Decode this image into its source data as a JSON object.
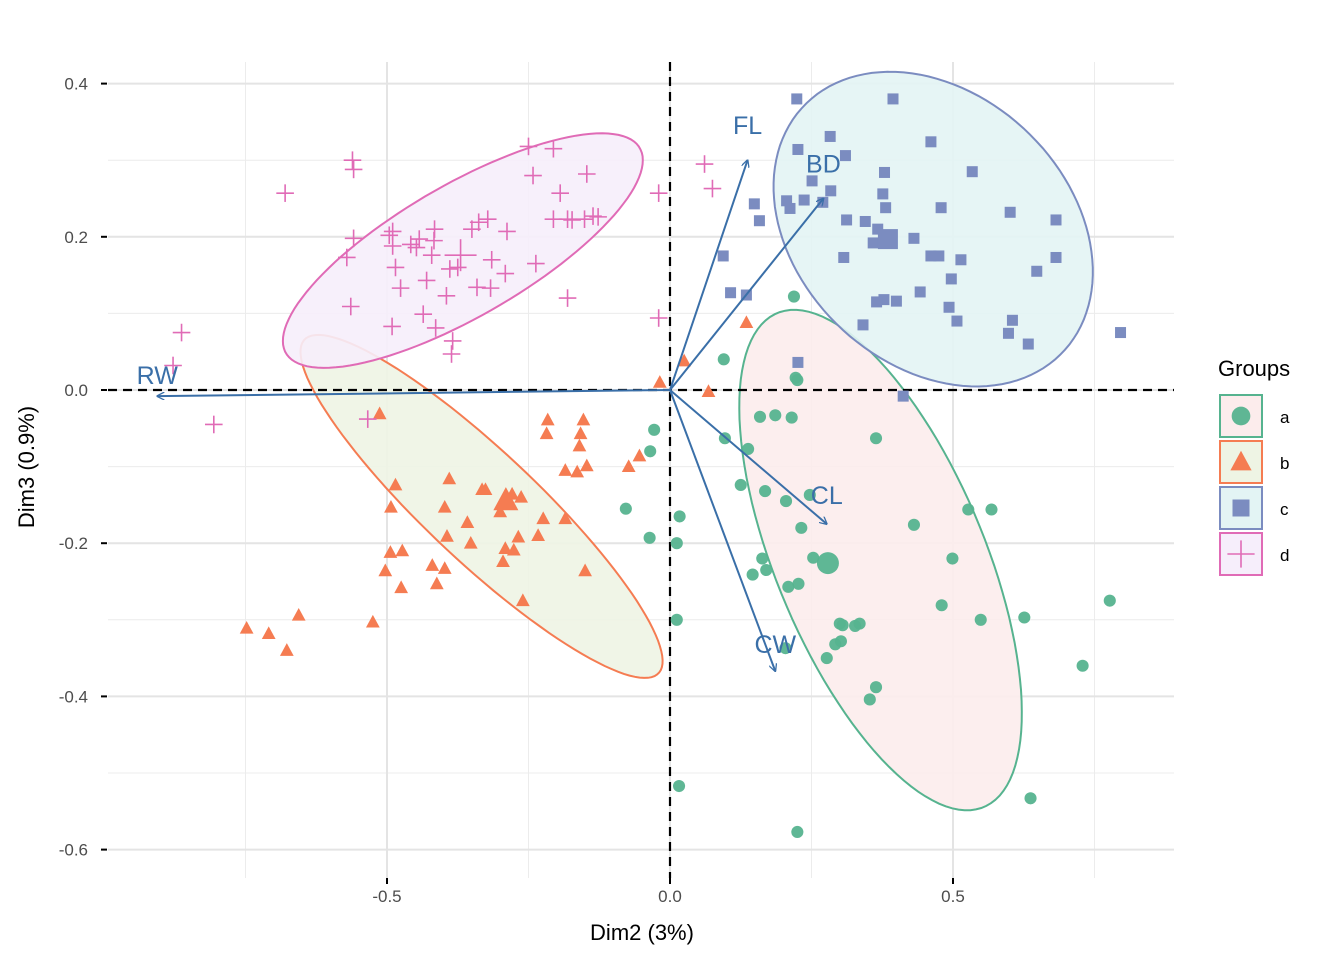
{
  "chart_data": {
    "type": "scatter",
    "title": "",
    "xlabel": "Dim2 (3%)",
    "ylabel": "Dim3 (0.9%)",
    "xlim": [
      -0.96,
      0.89
    ],
    "ylim": [
      -0.635,
      0.455
    ],
    "x_ticks": [
      -0.5,
      0.0,
      0.5
    ],
    "x_tick_labels": [
      "-0.5",
      "0.0",
      "0.5"
    ],
    "y_ticks": [
      0.4,
      0.2,
      0.0,
      -0.2,
      -0.4,
      -0.6
    ],
    "y_tick_labels": [
      "0.4",
      "0.2",
      "0.0",
      "-0.2",
      "-0.4",
      "-0.6"
    ],
    "grid": true,
    "reference_lines": {
      "x": 0,
      "y": 0,
      "style": "dashed"
    },
    "legend": {
      "title": "Groups",
      "position": "right"
    },
    "variable_arrow_color": "#3a6fa8",
    "variables": [
      {
        "name": "FL",
        "x": 0.137,
        "y": 0.3
      },
      {
        "name": "BD",
        "x": 0.271,
        "y": 0.25
      },
      {
        "name": "RW",
        "x": -0.906,
        "y": -0.008
      },
      {
        "name": "CL",
        "x": 0.277,
        "y": -0.175
      },
      {
        "name": "CW",
        "x": 0.186,
        "y": -0.367
      }
    ],
    "series": [
      {
        "name": "a",
        "shape": "circle",
        "color": "#56b38f",
        "fill": "#fcecec",
        "centroid": [
          0.279,
          -0.226
        ],
        "ellipse": {
          "cx": 0.372,
          "cy": -0.222,
          "rx": 0.373,
          "ry": 0.173,
          "angle_deg": -57
        },
        "points": [
          [
            -0.078,
            -0.155
          ],
          [
            -0.036,
            -0.193
          ],
          [
            0.012,
            -0.2
          ],
          [
            0.017,
            -0.165
          ],
          [
            0.012,
            -0.3
          ],
          [
            0.016,
            -0.517
          ],
          [
            0.097,
            -0.063
          ],
          [
            0.138,
            -0.077
          ],
          [
            0.125,
            -0.124
          ],
          [
            0.168,
            -0.132
          ],
          [
            0.186,
            -0.033
          ],
          [
            0.159,
            -0.035
          ],
          [
            0.225,
            0.013
          ],
          [
            0.215,
            -0.036
          ],
          [
            0.247,
            -0.137
          ],
          [
            0.205,
            -0.145
          ],
          [
            0.232,
            -0.18
          ],
          [
            0.17,
            -0.235
          ],
          [
            0.209,
            -0.257
          ],
          [
            0.227,
            -0.253
          ],
          [
            0.253,
            -0.219
          ],
          [
            0.163,
            -0.22
          ],
          [
            0.146,
            -0.241
          ],
          [
            0.3,
            -0.305
          ],
          [
            0.305,
            -0.307
          ],
          [
            0.327,
            -0.308
          ],
          [
            0.335,
            -0.305
          ],
          [
            0.302,
            -0.328
          ],
          [
            0.292,
            -0.332
          ],
          [
            0.277,
            -0.35
          ],
          [
            0.364,
            -0.388
          ],
          [
            0.353,
            -0.404
          ],
          [
            0.364,
            -0.063
          ],
          [
            0.431,
            -0.176
          ],
          [
            0.499,
            -0.22
          ],
          [
            0.48,
            -0.281
          ],
          [
            0.527,
            -0.156
          ],
          [
            0.549,
            -0.3
          ],
          [
            0.568,
            -0.156
          ],
          [
            0.626,
            -0.297
          ],
          [
            0.729,
            -0.36
          ],
          [
            0.777,
            -0.275
          ],
          [
            0.637,
            -0.533
          ],
          [
            0.225,
            -0.577
          ],
          [
            0.204,
            -0.337
          ],
          [
            0.219,
            0.122
          ],
          [
            0.095,
            0.04
          ],
          [
            0.222,
            0.016
          ],
          [
            -0.028,
            -0.052
          ],
          [
            -0.035,
            -0.08
          ]
        ]
      },
      {
        "name": "b",
        "shape": "triangle",
        "color": "#f57c52",
        "fill": "#eef4e4",
        "centroid": [
          -0.29,
          -0.144
        ],
        "ellipse": {
          "cx": -0.333,
          "cy": -0.152,
          "rx": 0.382,
          "ry": 0.081,
          "angle_deg": -34
        },
        "points": [
          [
            -0.018,
            0.01
          ],
          [
            0.068,
            -0.002
          ],
          [
            0.135,
            0.088
          ],
          [
            0.025,
            0.038
          ],
          [
            -0.513,
            -0.031
          ],
          [
            -0.216,
            -0.039
          ],
          [
            -0.153,
            -0.039
          ],
          [
            -0.218,
            -0.057
          ],
          [
            -0.158,
            -0.057
          ],
          [
            -0.16,
            -0.073
          ],
          [
            -0.147,
            -0.099
          ],
          [
            -0.185,
            -0.105
          ],
          [
            -0.164,
            -0.107
          ],
          [
            -0.263,
            -0.14
          ],
          [
            -0.224,
            -0.168
          ],
          [
            -0.185,
            -0.168
          ],
          [
            -0.233,
            -0.19
          ],
          [
            -0.279,
            -0.136
          ],
          [
            -0.326,
            -0.13
          ],
          [
            -0.358,
            -0.173
          ],
          [
            -0.332,
            -0.13
          ],
          [
            -0.3,
            -0.159
          ],
          [
            -0.276,
            -0.209
          ],
          [
            -0.268,
            -0.192
          ],
          [
            -0.39,
            -0.116
          ],
          [
            -0.398,
            -0.153
          ],
          [
            -0.394,
            -0.191
          ],
          [
            -0.352,
            -0.2
          ],
          [
            -0.295,
            -0.224
          ],
          [
            -0.291,
            -0.207
          ],
          [
            -0.412,
            -0.253
          ],
          [
            -0.42,
            -0.229
          ],
          [
            -0.485,
            -0.124
          ],
          [
            -0.493,
            -0.153
          ],
          [
            -0.473,
            -0.21
          ],
          [
            -0.494,
            -0.212
          ],
          [
            -0.503,
            -0.236
          ],
          [
            -0.475,
            -0.258
          ],
          [
            -0.398,
            -0.233
          ],
          [
            -0.26,
            -0.275
          ],
          [
            -0.15,
            -0.236
          ],
          [
            -0.525,
            -0.303
          ],
          [
            -0.656,
            -0.294
          ],
          [
            -0.709,
            -0.318
          ],
          [
            -0.748,
            -0.311
          ],
          [
            -0.677,
            -0.34
          ],
          [
            -0.073,
            -0.1
          ],
          [
            -0.054,
            -0.086
          ]
        ]
      },
      {
        "name": "c",
        "shape": "square",
        "color": "#7b8cc0",
        "fill": "#e3f4f4",
        "centroid": [
          0.385,
          0.197
        ],
        "ellipse": {
          "cx": 0.465,
          "cy": 0.21,
          "rx": 0.292,
          "ry": 0.191,
          "angle_deg": -20
        },
        "points": [
          [
            0.224,
            0.38
          ],
          [
            0.394,
            0.38
          ],
          [
            0.283,
            0.331
          ],
          [
            0.31,
            0.306
          ],
          [
            0.226,
            0.314
          ],
          [
            0.461,
            0.324
          ],
          [
            0.206,
            0.247
          ],
          [
            0.237,
            0.248
          ],
          [
            0.251,
            0.273
          ],
          [
            0.27,
            0.245
          ],
          [
            0.284,
            0.26
          ],
          [
            0.379,
            0.284
          ],
          [
            0.376,
            0.256
          ],
          [
            0.534,
            0.285
          ],
          [
            0.149,
            0.243
          ],
          [
            0.158,
            0.221
          ],
          [
            0.212,
            0.237
          ],
          [
            0.312,
            0.222
          ],
          [
            0.381,
            0.238
          ],
          [
            0.367,
            0.21
          ],
          [
            0.345,
            0.22
          ],
          [
            0.359,
            0.192
          ],
          [
            0.392,
            0.202
          ],
          [
            0.431,
            0.198
          ],
          [
            0.479,
            0.238
          ],
          [
            0.461,
            0.175
          ],
          [
            0.475,
            0.175
          ],
          [
            0.497,
            0.145
          ],
          [
            0.514,
            0.17
          ],
          [
            0.601,
            0.232
          ],
          [
            0.682,
            0.222
          ],
          [
            0.682,
            0.173
          ],
          [
            0.648,
            0.155
          ],
          [
            0.307,
            0.173
          ],
          [
            0.378,
            0.118
          ],
          [
            0.4,
            0.116
          ],
          [
            0.442,
            0.128
          ],
          [
            0.365,
            0.115
          ],
          [
            0.493,
            0.108
          ],
          [
            0.507,
            0.09
          ],
          [
            0.341,
            0.085
          ],
          [
            0.605,
            0.091
          ],
          [
            0.598,
            0.074
          ],
          [
            0.633,
            0.06
          ],
          [
            0.796,
            0.075
          ],
          [
            0.107,
            0.127
          ],
          [
            0.135,
            0.124
          ],
          [
            0.094,
            0.175
          ],
          [
            0.226,
            0.036
          ],
          [
            0.412,
            -0.008
          ]
        ]
      },
      {
        "name": "d",
        "shape": "plus",
        "color": "#e06bb6",
        "fill": "#f6eefb",
        "centroid": [
          -0.37,
          0.176
        ],
        "ellipse": {
          "cx": -0.366,
          "cy": 0.182,
          "rx": 0.341,
          "ry": 0.091,
          "angle_deg": 22
        },
        "points": [
          [
            -0.561,
            0.3
          ],
          [
            -0.559,
            0.288
          ],
          [
            -0.68,
            0.257
          ],
          [
            -0.206,
            0.315
          ],
          [
            -0.25,
            0.318
          ],
          [
            -0.242,
            0.28
          ],
          [
            -0.194,
            0.257
          ],
          [
            -0.147,
            0.282
          ],
          [
            -0.173,
            0.222
          ],
          [
            -0.136,
            0.227
          ],
          [
            -0.151,
            0.223
          ],
          [
            -0.181,
            0.223
          ],
          [
            -0.206,
            0.223
          ],
          [
            -0.127,
            0.226
          ],
          [
            -0.288,
            0.207
          ],
          [
            -0.322,
            0.223
          ],
          [
            -0.338,
            0.219
          ],
          [
            -0.35,
            0.21
          ],
          [
            -0.416,
            0.21
          ],
          [
            -0.417,
            0.195
          ],
          [
            -0.443,
            0.197
          ],
          [
            -0.49,
            0.207
          ],
          [
            -0.496,
            0.202
          ],
          [
            -0.559,
            0.198
          ],
          [
            -0.571,
            0.173
          ],
          [
            -0.49,
            0.188
          ],
          [
            -0.458,
            0.19
          ],
          [
            -0.421,
            0.176
          ],
          [
            -0.375,
            0.16
          ],
          [
            -0.389,
            0.158
          ],
          [
            -0.448,
            0.186
          ],
          [
            -0.315,
            0.17
          ],
          [
            -0.291,
            0.152
          ],
          [
            -0.237,
            0.165
          ],
          [
            -0.485,
            0.16
          ],
          [
            -0.476,
            0.133
          ],
          [
            -0.43,
            0.143
          ],
          [
            -0.395,
            0.123
          ],
          [
            -0.341,
            0.134
          ],
          [
            -0.317,
            0.133
          ],
          [
            -0.564,
            0.109
          ],
          [
            -0.491,
            0.083
          ],
          [
            -0.436,
            0.099
          ],
          [
            -0.414,
            0.081
          ],
          [
            -0.384,
            0.064
          ],
          [
            -0.386,
            0.047
          ],
          [
            -0.181,
            0.12
          ],
          [
            -0.02,
            0.257
          ],
          [
            -0.02,
            0.094
          ],
          [
            0.061,
            0.295
          ],
          [
            0.075,
            0.263
          ],
          [
            -0.863,
            0.075
          ],
          [
            -0.878,
            0.032
          ],
          [
            -0.806,
            -0.045
          ],
          [
            -0.534,
            -0.038
          ]
        ]
      }
    ]
  }
}
